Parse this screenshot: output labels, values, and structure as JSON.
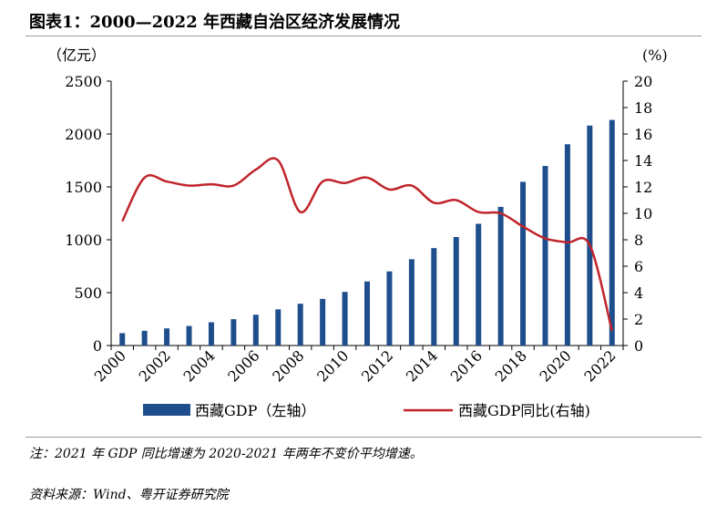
{
  "figure": {
    "title": "图表1：2000—2022 年西藏自治区经济发展情况",
    "note": "注：2021 年 GDP 同比增速为 2020-2021 年两年不变价平均增速。",
    "source": "资料来源：Wind、粤开证券研究院"
  },
  "chart_data": {
    "type": "bar",
    "categories": [
      "2000",
      "2001",
      "2002",
      "2003",
      "2004",
      "2005",
      "2006",
      "2007",
      "2008",
      "2009",
      "2010",
      "2011",
      "2012",
      "2013",
      "2014",
      "2015",
      "2016",
      "2017",
      "2018",
      "2019",
      "2020",
      "2021",
      "2022"
    ],
    "x_tick_labels": [
      "2000",
      "2002",
      "2004",
      "2006",
      "2008",
      "2010",
      "2012",
      "2014",
      "2016",
      "2018",
      "2020",
      "2022"
    ],
    "left_axis": {
      "unit_label": "（亿元）",
      "ylim": [
        0,
        2500
      ],
      "ticks": [
        "0",
        "500",
        "1000",
        "1500",
        "2000",
        "2500"
      ]
    },
    "right_axis": {
      "unit_label": "(%)",
      "ylim": [
        0,
        20
      ],
      "ticks": [
        "0",
        "2",
        "4",
        "6",
        "8",
        "10",
        "12",
        "14",
        "16",
        "18",
        "20"
      ]
    },
    "grid": false,
    "legend_position": "bottom",
    "series": [
      {
        "name": "西藏GDP（左轴）",
        "type": "bar",
        "axis": "left",
        "color": "#1f4e8c",
        "values": [
          117,
          139,
          162,
          185,
          220,
          249,
          291,
          342,
          395,
          441,
          507,
          606,
          701,
          816,
          921,
          1026,
          1151,
          1311,
          1548,
          1698,
          1903,
          2080,
          2133
        ]
      },
      {
        "name": "西藏GDP同比(右轴)",
        "type": "line",
        "axis": "right",
        "color": "#c0242a",
        "values": [
          9.4,
          12.7,
          12.4,
          12.1,
          12.2,
          12.1,
          13.3,
          14.0,
          10.1,
          12.4,
          12.3,
          12.7,
          11.8,
          12.1,
          10.8,
          11.0,
          10.1,
          10.0,
          9.0,
          8.1,
          7.8,
          7.6,
          1.1
        ]
      }
    ]
  }
}
